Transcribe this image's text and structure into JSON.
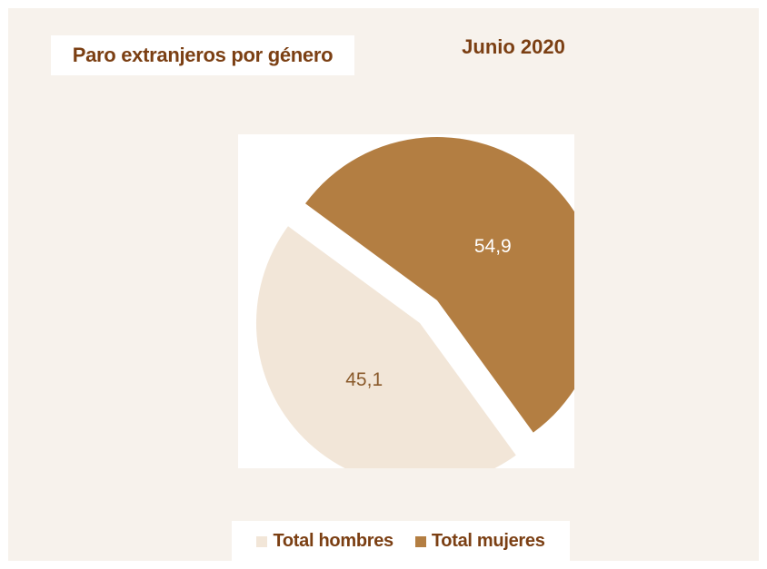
{
  "chart_data": {
    "type": "pie",
    "title": "Paro extranjeros por género",
    "subtitle": "Junio 2020",
    "slices": [
      {
        "name": "Total hombres",
        "value": 45.1,
        "label": "45,1",
        "color": "#f2e6d8",
        "label_color": "#8a5a2b"
      },
      {
        "name": "Total mujeres",
        "value": 54.9,
        "label": "54,9",
        "color": "#b37e42",
        "label_color": "#ffffff"
      }
    ],
    "exploded": true,
    "legend": "bottom"
  }
}
